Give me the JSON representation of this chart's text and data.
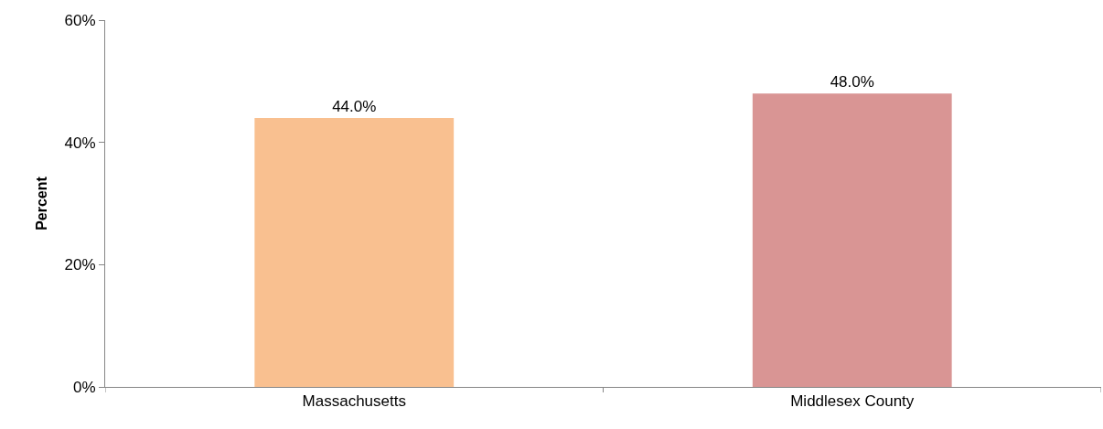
{
  "chart_data": {
    "type": "bar",
    "ylabel": "Percent",
    "categories": [
      "Massachusetts",
      "Middlesex County"
    ],
    "values": [
      44,
      48
    ],
    "colors": [
      "#f9c090",
      "#d99594"
    ],
    "value_labels": [
      "44.0%",
      "48.0%"
    ],
    "ylim": [
      0,
      60
    ],
    "yticks": [
      {
        "value": 0,
        "label": "0%"
      },
      {
        "value": 20,
        "label": "20%"
      },
      {
        "value": 40,
        "label": "40%"
      },
      {
        "value": 60,
        "label": "60%"
      }
    ],
    "grid": false
  }
}
